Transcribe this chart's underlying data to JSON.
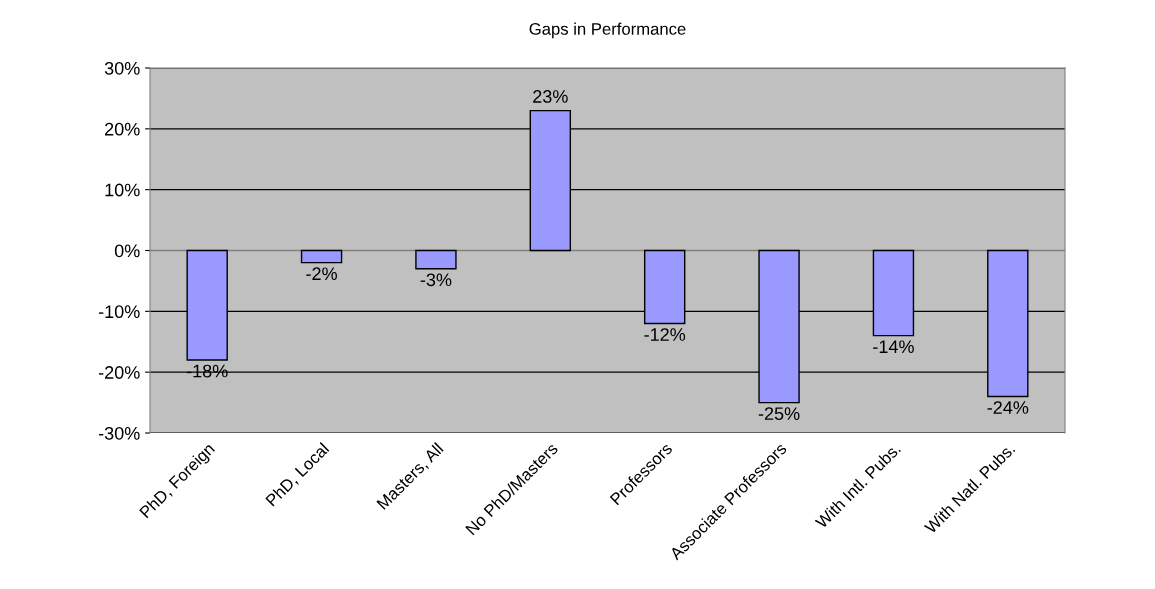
{
  "chart_data": {
    "type": "bar",
    "title": "Gaps in Performance",
    "categories": [
      "PhD, Foreign",
      "PhD, Local",
      "Masters, All",
      "No PhD/Masters",
      "Professors",
      "Associate Professors",
      "With Intl. Pubs.",
      "With Natl. Pubs."
    ],
    "values": [
      -18,
      -2,
      -3,
      23,
      -12,
      -25,
      -14,
      -24
    ],
    "value_labels": [
      "-18%",
      "-2%",
      "-3%",
      "23%",
      "-12%",
      "-25%",
      "-14%",
      "-24%"
    ],
    "color": "#9999ff",
    "ylim": [
      -30,
      30
    ],
    "yticks": [
      {
        "value": -30,
        "label": "-30%"
      },
      {
        "value": -20,
        "label": "-20%"
      },
      {
        "value": -10,
        "label": "-10%"
      },
      {
        "value": 0,
        "label": "0%"
      },
      {
        "value": 10,
        "label": "10%"
      },
      {
        "value": 20,
        "label": "20%"
      },
      {
        "value": 30,
        "label": "30%"
      }
    ],
    "grid": "y",
    "legend": false
  }
}
